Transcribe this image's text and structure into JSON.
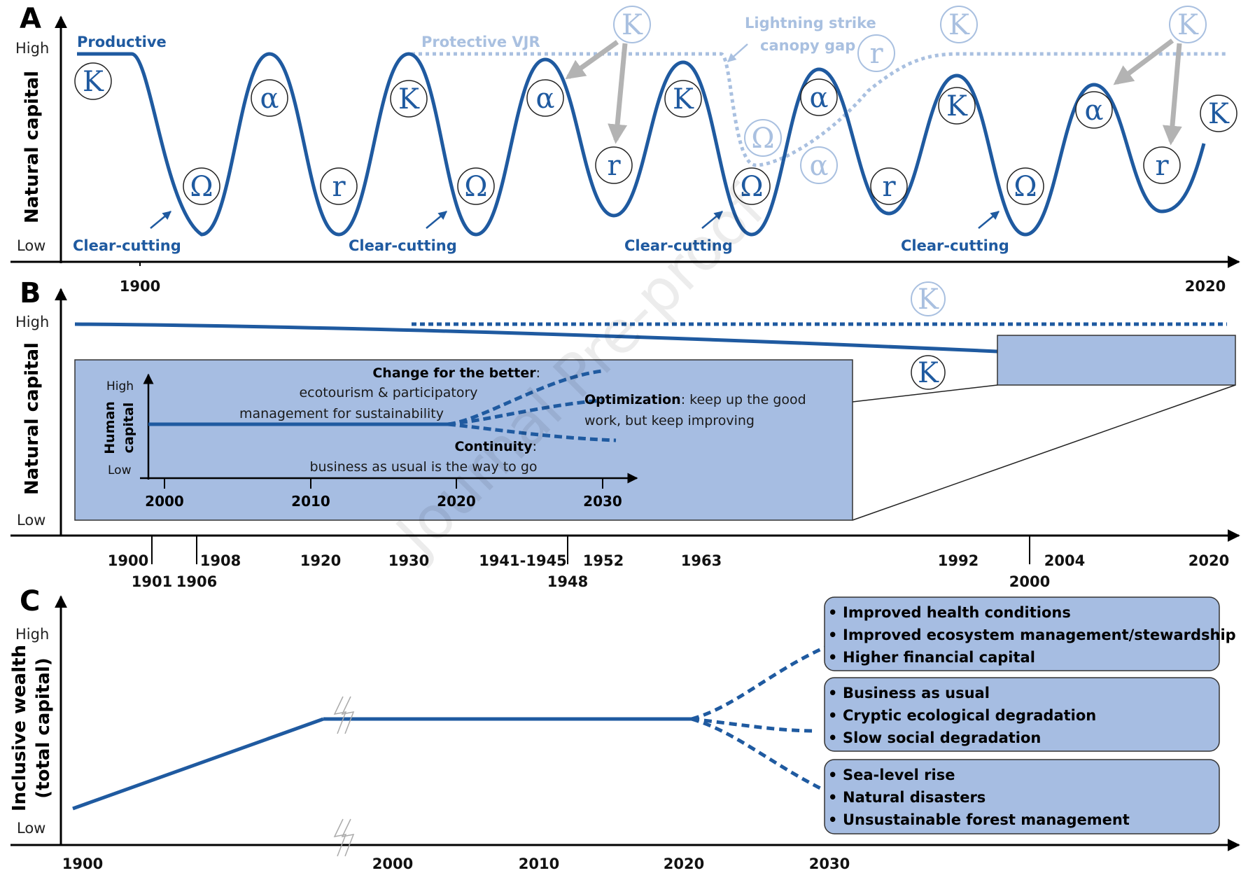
{
  "panel_a": {
    "letter": "A",
    "y_label": "Natural capital",
    "y_high": "High",
    "y_low": "Low",
    "x_start": "1900",
    "x_end": "2020",
    "productive_label": "Productive",
    "protective_label": "Protective VJR",
    "lightning_label_1": "Lightning strike",
    "lightning_label_2": "canopy gap",
    "clear_cutting_label": "Clear-cutting",
    "clear_cutting_labels": [
      "Clear-cutting",
      "Clear-cutting",
      "Clear-cutting",
      "Clear-cutting"
    ],
    "phase_symbols": {
      "K": "K",
      "alpha": "α",
      "omega": "Ω",
      "r": "r"
    },
    "colors": {
      "productive": "#1f5aa0",
      "protective": "#a9c0e0",
      "arrow": "#b3b3b3"
    }
  },
  "panel_b": {
    "letter": "B",
    "y_label": "Natural capital",
    "y_high": "High",
    "y_low": "Low",
    "k_light": "K",
    "k_dark": "K",
    "x_ticks_upper": [
      "1900",
      "1908",
      "1920",
      "1930",
      "1941-1945",
      "1952",
      "1963",
      "1992",
      "2004",
      "2020"
    ],
    "x_ticks_lower": [
      "1901",
      "1906",
      "1948",
      "2000"
    ],
    "inset": {
      "y_high": "High",
      "y_low": "Low",
      "y_label_1": "Human",
      "y_label_2": "capital",
      "x_ticks": [
        "2000",
        "2010",
        "2020",
        "2030"
      ],
      "better_title": "Change for the better",
      "better_colon": ":",
      "better_line1": "ecotourism & participatory",
      "better_line2": "management for sustainability",
      "optimization_title": "Optimization",
      "optimization_rest": ": keep up the good",
      "optimization_line2": "work, but keep improving",
      "continuity_title": "Continuity",
      "continuity_colon": ":",
      "continuity_line": "business as usual is the way to go"
    },
    "colors": {
      "line": "#1f5aa0",
      "inset_fill": "#a6bde2"
    }
  },
  "panel_c": {
    "letter": "C",
    "y_label_1": "Inclusive wealth",
    "y_label_2": "(total capital)",
    "y_high": "High",
    "y_low": "Low",
    "x_ticks": [
      "1900",
      "2000",
      "2010",
      "2020",
      "2030"
    ],
    "boxes": [
      {
        "items": [
          "Improved health conditions",
          "Improved ecosystem management/stewardship",
          "Higher financial capital"
        ]
      },
      {
        "items": [
          "Business as usual",
          "Cryptic ecological degradation",
          "Slow social degradation"
        ]
      },
      {
        "items": [
          "Sea-level rise",
          "Natural disasters",
          "Unsustainable forest management"
        ]
      }
    ],
    "colors": {
      "line": "#1f5aa0",
      "box_fill": "#a6bde2"
    }
  },
  "watermark": "Journal Pre-proof"
}
